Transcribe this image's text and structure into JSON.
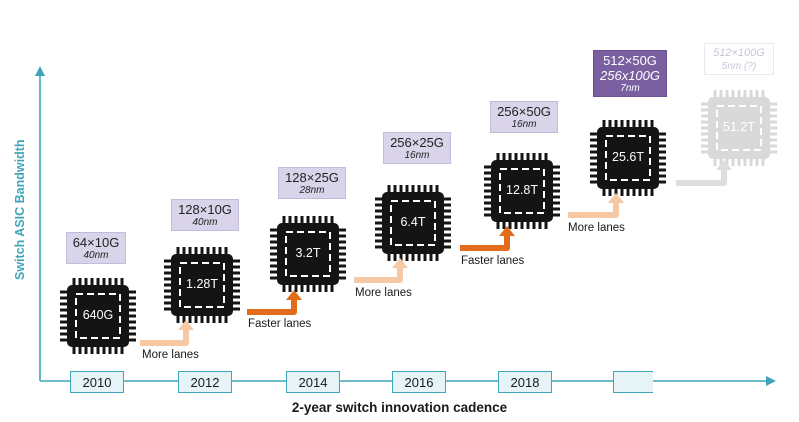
{
  "axis": {
    "y_title": "Switch ASIC Bandwidth",
    "x_title": "2-year switch innovation cadence"
  },
  "years": [
    "2010",
    "2012",
    "2014",
    "2016",
    "2018",
    ""
  ],
  "chips": [
    {
      "label": "640G",
      "spec": "64×10G",
      "node": "40nm"
    },
    {
      "label": "1.28T",
      "spec": "128×10G",
      "node": "40nm"
    },
    {
      "label": "3.2T",
      "spec": "128×25G",
      "node": "28nm"
    },
    {
      "label": "6.4T",
      "spec": "256×25G",
      "node": "16nm"
    },
    {
      "label": "12.8T",
      "spec": "256×50G",
      "node": "16nm"
    },
    {
      "label": "25.6T",
      "spec": "512×50G",
      "spec2": "256x100G",
      "node": "7nm"
    },
    {
      "label": "51.2T",
      "spec": "512×100G",
      "node": "5nm (?)"
    }
  ],
  "transitions": [
    "More lanes",
    "Faster lanes",
    "More lanes",
    "Faster lanes",
    "More lanes",
    ""
  ],
  "colors": {
    "axis": "#3fa6b9",
    "chip": "#141414",
    "chip_future": "#d9d9d9",
    "more_lanes_arrow": "#f6c9a4",
    "faster_lanes_arrow": "#e36c1a",
    "future_arrow": "#dedede",
    "spec_box": "#d9d4e9",
    "spec_box_highlight": "#7a5fa1"
  }
}
